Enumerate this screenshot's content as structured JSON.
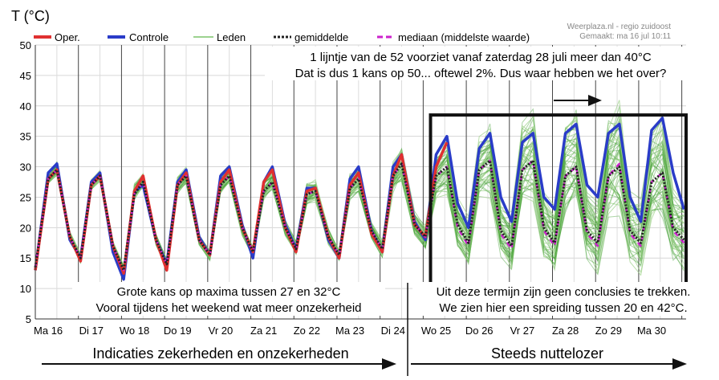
{
  "chart_data": {
    "type": "line",
    "ylabel": "T (°C)",
    "ylim": [
      5,
      50
    ],
    "yticks": [
      5,
      10,
      15,
      20,
      25,
      30,
      35,
      40,
      45,
      50
    ],
    "xlim": [
      0,
      15.1
    ],
    "day_labels": [
      "Ma 16",
      "Di 17",
      "Wo 18",
      "Do 19",
      "Vr 20",
      "Za 21",
      "Zo 22",
      "Ma 23",
      "Di 24",
      "Wo 25",
      "Do 26",
      "Vr 27",
      "Za 28",
      "Zo 29",
      "Ma 30"
    ],
    "legend": [
      "Oper.",
      "Controle",
      "Leden",
      "gemiddelde",
      "mediaan (middelste waarde)"
    ],
    "credit": [
      "Weerplaza.nl - regio zuidoost",
      "Gemaakt: ma 16 jul 10:11"
    ],
    "colors": {
      "oper": "#e03030",
      "controle": "#2a3cc8",
      "leden": "#3a9a2a",
      "gemiddelde": "#222222",
      "mediaan": "#cc22cc"
    },
    "series": [
      {
        "name": "Oper.",
        "x": [
          0,
          0.3,
          0.5,
          0.8,
          1.05,
          1.3,
          1.5,
          1.8,
          2.05,
          2.3,
          2.5,
          2.8,
          3.05,
          3.3,
          3.5,
          3.8,
          4.05,
          4.3,
          4.5,
          4.8,
          5.05,
          5.3,
          5.5,
          5.8,
          6.05,
          6.3,
          6.5,
          6.8,
          7.05,
          7.3,
          7.5,
          7.8,
          8.05,
          8.3,
          8.5,
          8.8,
          9.05,
          9.3,
          9.55
        ],
        "y": [
          13,
          28,
          29.5,
          18.5,
          14.5,
          27,
          28.5,
          17,
          12.5,
          26,
          28.5,
          18,
          13,
          27,
          29,
          18,
          15.5,
          27.5,
          29.5,
          20,
          16,
          27.5,
          29.5,
          20,
          16,
          26,
          26.5,
          18.5,
          15,
          27,
          29,
          19,
          16,
          28.5,
          32,
          20.5,
          18.5,
          30,
          34
        ]
      },
      {
        "name": "Controle",
        "x": [
          0,
          0.3,
          0.5,
          0.8,
          1.05,
          1.3,
          1.5,
          1.8,
          2.05,
          2.3,
          2.5,
          2.8,
          3.05,
          3.3,
          3.5,
          3.8,
          4.05,
          4.3,
          4.5,
          4.8,
          5.05,
          5.3,
          5.5,
          5.8,
          6.05,
          6.3,
          6.5,
          6.8,
          7.05,
          7.3,
          7.5,
          7.8,
          8.05,
          8.3,
          8.5,
          8.8,
          9.05,
          9.3,
          9.55,
          9.8,
          10.05,
          10.3,
          10.55,
          10.8,
          11.05,
          11.3,
          11.55,
          11.8,
          12.05,
          12.3,
          12.55,
          12.8,
          13.05,
          13.3,
          13.55,
          13.8,
          14.05,
          14.3,
          14.55,
          14.8,
          15.05
        ],
        "y": [
          13,
          29,
          30.5,
          18,
          15,
          27.5,
          29,
          16,
          11.5,
          26,
          27,
          18,
          14,
          27.5,
          29.5,
          18.5,
          15.5,
          28.5,
          30,
          20.5,
          15,
          27.5,
          30,
          20.5,
          16.5,
          26.5,
          26.5,
          18,
          15,
          28,
          30,
          19.5,
          16,
          30,
          32,
          21,
          18,
          32,
          35,
          24,
          20,
          33,
          35.5,
          25,
          21,
          34,
          35.5,
          25,
          23,
          35.5,
          37,
          27,
          25,
          35.5,
          37,
          25,
          21,
          36,
          38,
          29,
          23
        ]
      },
      {
        "name": "gemiddelde",
        "x": [
          0,
          0.3,
          0.5,
          0.8,
          1.05,
          1.3,
          1.5,
          1.8,
          2.05,
          2.3,
          2.5,
          2.8,
          3.05,
          3.3,
          3.5,
          3.8,
          4.05,
          4.3,
          4.5,
          4.8,
          5.05,
          5.3,
          5.5,
          5.8,
          6.05,
          6.3,
          6.5,
          6.8,
          7.05,
          7.3,
          7.5,
          7.8,
          8.05,
          8.3,
          8.5,
          8.8,
          9.05,
          9.3,
          9.55,
          9.8,
          10.05,
          10.3,
          10.55,
          10.8,
          11.05,
          11.3,
          11.55,
          11.8,
          12.05,
          12.3,
          12.55,
          12.8,
          13.05,
          13.3,
          13.55,
          13.8,
          14.05,
          14.3,
          14.55,
          14.8,
          15.05
        ],
        "y": [
          13.5,
          28,
          29.5,
          18.5,
          15,
          27,
          28.5,
          17,
          13,
          25.5,
          27.5,
          18,
          14,
          27,
          28.5,
          18,
          15.5,
          27,
          28.5,
          20,
          16,
          26,
          27.5,
          20,
          16.5,
          25.5,
          26,
          18.5,
          15.5,
          26.5,
          28,
          19.5,
          16.5,
          28.5,
          30.5,
          20.5,
          18.5,
          28.5,
          30,
          20.5,
          17.5,
          29.5,
          31,
          19.5,
          17,
          29.5,
          31,
          20,
          17.5,
          28.5,
          30,
          19.5,
          17.5,
          28.5,
          30,
          19.5,
          17.5,
          27.5,
          29,
          20,
          18
        ]
      },
      {
        "name": "mediaan (middelste waarde)",
        "x": [
          0,
          0.3,
          0.5,
          0.8,
          1.05,
          1.3,
          1.5,
          1.8,
          2.05,
          2.3,
          2.5,
          2.8,
          3.05,
          3.3,
          3.5,
          3.8,
          4.05,
          4.3,
          4.5,
          4.8,
          5.05,
          5.3,
          5.5,
          5.8,
          6.05,
          6.3,
          6.5,
          6.8,
          7.05,
          7.3,
          7.5,
          7.8,
          8.05,
          8.3,
          8.5,
          8.8,
          9.05,
          9.3,
          9.55,
          9.8,
          10.05,
          10.3,
          10.55,
          10.8,
          11.05,
          11.3,
          11.55,
          11.8,
          12.05,
          12.3,
          12.55,
          12.8,
          13.05,
          13.3,
          13.55,
          13.8,
          14.05,
          14.3,
          14.55,
          14.8,
          15.05
        ],
        "y": [
          13.5,
          28,
          29.5,
          18.5,
          15,
          27,
          28.5,
          17,
          13,
          25.5,
          27.5,
          18,
          14,
          27,
          28.5,
          18,
          15.5,
          27,
          28.5,
          20,
          16,
          26,
          27.5,
          20,
          16.5,
          25.5,
          26,
          18.5,
          15.5,
          26.5,
          28,
          19.5,
          16.5,
          28.5,
          30.5,
          20.5,
          18.5,
          28.5,
          30,
          20,
          17,
          29.5,
          31,
          19,
          16.5,
          29.5,
          31,
          19.5,
          17,
          28.5,
          30,
          19,
          17,
          28.5,
          30.5,
          19,
          17,
          27.5,
          29,
          19.5,
          17.5
        ]
      }
    ],
    "members": {
      "name": "Leden",
      "count": 52,
      "x": [
        0,
        0.3,
        0.5,
        0.8,
        1.05,
        1.3,
        1.5,
        1.8,
        2.05,
        2.3,
        2.5,
        2.8,
        3.05,
        3.3,
        3.5,
        3.8,
        4.05,
        4.3,
        4.5,
        4.8,
        5.05,
        5.3,
        5.5,
        5.8,
        6.05,
        6.3,
        6.5,
        6.8,
        7.05,
        7.3,
        7.5,
        7.8,
        8.05,
        8.3,
        8.5,
        8.8,
        9.05,
        9.3,
        9.55,
        9.8,
        10.05,
        10.3,
        10.55,
        10.8,
        11.05,
        11.3,
        11.55,
        11.8,
        12.05,
        12.3,
        12.55,
        12.8,
        13.05,
        13.3,
        13.55,
        13.8,
        14.05,
        14.3,
        14.55,
        14.8,
        15.05
      ],
      "low": [
        13,
        27,
        28.5,
        18,
        14,
        26,
        27.5,
        16,
        12,
        24.5,
        26.5,
        17,
        13,
        25.5,
        27,
        17,
        14.5,
        25.5,
        27,
        18.5,
        15,
        24.5,
        26,
        18.5,
        15.5,
        23.5,
        24,
        17,
        14.5,
        24.5,
        25.5,
        18,
        15,
        25.5,
        27,
        18.5,
        16,
        24,
        25,
        16.5,
        13.5,
        24,
        24.5,
        15,
        12.5,
        23,
        23.5,
        14.5,
        12,
        21,
        22,
        14,
        12,
        21,
        21.5,
        14,
        12,
        20,
        20.5,
        14,
        12.5
      ],
      "high": [
        14,
        29,
        31,
        19.5,
        16,
        28,
        29.5,
        18,
        14,
        27.5,
        29,
        19,
        15,
        28.5,
        30,
        19,
        16.5,
        29,
        30.5,
        21,
        17,
        28,
        29.5,
        21.5,
        18,
        27.5,
        28,
        20,
        16.5,
        29,
        30.5,
        21,
        18,
        31,
        34,
        23,
        20.5,
        33,
        35,
        25,
        22,
        35,
        38,
        25,
        23,
        38,
        40,
        26,
        24,
        39,
        41,
        27,
        25,
        40,
        42,
        27,
        25,
        38,
        40,
        27,
        25
      ]
    },
    "annotations": {
      "top": [
        "1 lijntje van de 52 voorziet vanaf zaterdag 28 juli meer dan 40°C",
        "Dat is dus 1 kans op 50... oftewel 2%. Dus waar hebben we het over?"
      ],
      "bottom_left": [
        "Grote kans op maxima tussen 27 en 32°C",
        "Vooral tijdens het weekend wat meer onzekerheid"
      ],
      "bottom_right": [
        "Uit deze termijn zijn geen conclusies te trekken.",
        "We zien hier een spreiding tussen 20 en 42°C."
      ],
      "below_left": "Indicaties zekerheden en onzekerheden",
      "below_right": "Steeds nuttelozer"
    },
    "highlight_box": {
      "x": [
        9.17,
        15.1
      ],
      "y": [
        10,
        38.5
      ]
    }
  }
}
